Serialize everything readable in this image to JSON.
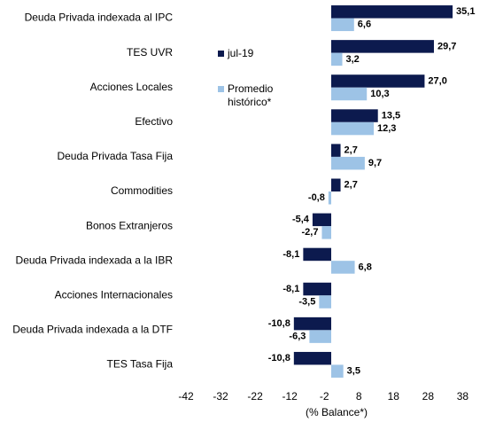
{
  "chart_data": {
    "type": "hbar",
    "categories": [
      "Deuda Privada indexada al IPC",
      "TES UVR",
      "Acciones Locales",
      "Efectivo",
      "Deuda Privada Tasa Fija",
      "Commodities",
      "Bonos Extranjeros",
      "Deuda Privada indexada a la IBR",
      "Acciones Internacionales",
      "Deuda Privada indexada a la DTF",
      "TES Tasa Fija"
    ],
    "series": [
      {
        "name": "jul-19",
        "color": "#0c1a4e",
        "values": [
          35.1,
          29.7,
          27.0,
          13.5,
          2.7,
          2.7,
          -5.4,
          -8.1,
          -8.1,
          -10.8,
          -10.8
        ],
        "value_labels": [
          "35,1",
          "29,7",
          "27,0",
          "13,5",
          "2,7",
          "2,7",
          "-5,4",
          "-8,1",
          "-8,1",
          "-10,8",
          "-10,8"
        ]
      },
      {
        "name": "Promedio histórico*",
        "color": "#9dc3e6",
        "values": [
          6.6,
          3.2,
          10.3,
          12.3,
          9.7,
          -0.8,
          -2.7,
          6.8,
          -3.5,
          -6.3,
          3.5
        ],
        "value_labels": [
          "6,6",
          "3,2",
          "10,3",
          "12,3",
          "9,7",
          "-0,8",
          "-2,7",
          "6,8",
          "-3,5",
          "-6,3",
          "3,5"
        ]
      }
    ],
    "x_label": "(% Balance*)",
    "xlim": [
      -42,
      42
    ],
    "xticks": [
      -42,
      -32,
      -22,
      -12,
      -2,
      8,
      18,
      28,
      38
    ]
  }
}
